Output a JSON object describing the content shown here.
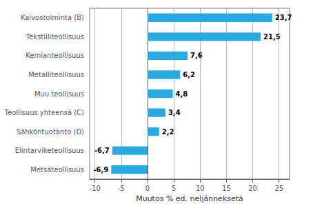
{
  "chart_data": {
    "type": "bar",
    "orientation": "horizontal",
    "categories": [
      "Metsäteollisuus",
      "Elintarviketeollisuus",
      "Sähköntuotanto (D)",
      "Teollisuus yhteensä (C)",
      "Muu teollisuus",
      "Metalliteollisuus",
      "Kemianteollisuus",
      "Tekstiiliteollisuus",
      "Kaivostoiminta (B)"
    ],
    "values": [
      -6.9,
      -6.7,
      2.2,
      3.4,
      4.8,
      6.2,
      7.6,
      21.5,
      23.7
    ],
    "value_labels": [
      "-6,9",
      "-6,7",
      "2,2",
      "3,4",
      "4,8",
      "6,2",
      "7,6",
      "21,5",
      "23,7"
    ],
    "data_labels": true,
    "color": "#29abe2",
    "xlabel": "Muutos % ed. neljänneksetä",
    "xlim": [
      -11,
      27
    ],
    "xticks": [
      -10,
      -5,
      0,
      5,
      10,
      15,
      20,
      25
    ],
    "grid": true
  }
}
